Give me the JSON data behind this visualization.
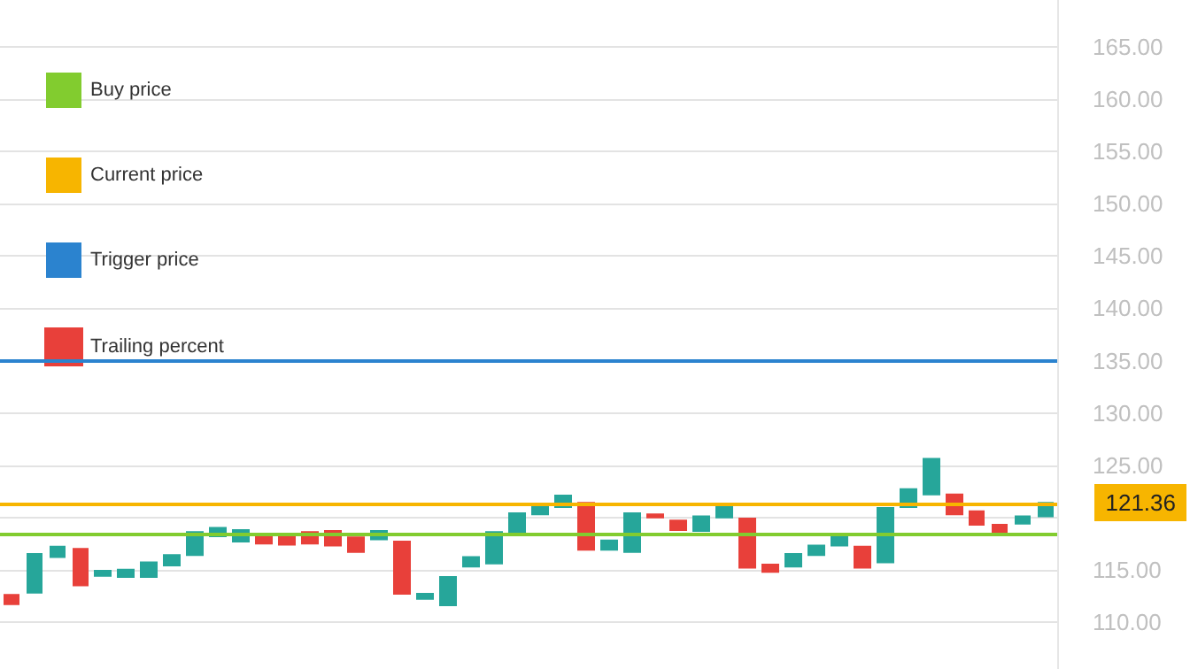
{
  "chart_data": {
    "type": "candlestick",
    "categories": [
      null,
      null,
      null,
      null,
      null,
      null,
      null,
      null,
      null,
      null,
      null,
      null,
      null,
      null,
      null,
      null,
      null,
      null,
      null,
      null,
      null,
      null,
      null,
      null,
      null,
      null,
      null,
      null,
      null,
      null,
      null,
      null,
      null,
      null,
      null,
      null,
      null,
      null,
      null,
      null,
      null,
      null,
      null,
      null,
      null,
      null
    ],
    "series": [
      {
        "name": "Trailing percent",
        "color": "#e8403a",
        "ohlc": [
          [
            112.6,
            112.6,
            111.7,
            111.7
          ],
          [
            112.8,
            116.5,
            112.8,
            116.5
          ],
          [
            116.2,
            117.2,
            116.2,
            117.2
          ],
          [
            117.0,
            117.0,
            113.5,
            113.5
          ],
          [
            114.4,
            114.9,
            114.4,
            114.9
          ],
          [
            114.3,
            115.0,
            114.3,
            115.0
          ],
          [
            114.3,
            115.7,
            114.3,
            115.7
          ],
          [
            115.4,
            116.4,
            115.4,
            116.4
          ],
          [
            116.4,
            118.6,
            116.4,
            118.6
          ],
          [
            118.2,
            119.0,
            118.2,
            119.0
          ],
          [
            117.7,
            118.8,
            117.7,
            118.8
          ],
          [
            118.4,
            118.4,
            117.5,
            117.5
          ],
          [
            118.4,
            118.4,
            117.4,
            117.4
          ],
          [
            118.6,
            118.6,
            117.5,
            117.5
          ],
          [
            118.7,
            118.7,
            117.3,
            117.3
          ],
          [
            118.1,
            118.1,
            116.7,
            116.7
          ],
          [
            117.9,
            118.7,
            117.9,
            118.7
          ],
          [
            117.7,
            117.7,
            112.7,
            112.7
          ],
          [
            112.2,
            112.7,
            112.2,
            112.7
          ],
          [
            111.6,
            114.3,
            111.6,
            114.3
          ],
          [
            115.3,
            116.2,
            115.3,
            116.2
          ],
          [
            115.6,
            118.6,
            115.6,
            118.6
          ],
          [
            118.4,
            120.4,
            118.4,
            120.4
          ],
          [
            120.3,
            121.0,
            120.3,
            121.0
          ],
          [
            121.0,
            122.1,
            121.0,
            122.1
          ],
          [
            121.4,
            121.4,
            116.9,
            116.9
          ],
          [
            116.9,
            117.8,
            116.9,
            117.8
          ],
          [
            116.7,
            120.4,
            116.7,
            120.4
          ],
          [
            120.3,
            120.3,
            120.0,
            120.0
          ],
          [
            119.7,
            119.7,
            118.8,
            118.8
          ],
          [
            118.7,
            120.1,
            118.7,
            120.1
          ],
          [
            120.0,
            121.0,
            120.0,
            121.0
          ],
          [
            119.9,
            119.9,
            115.2,
            115.2
          ],
          [
            115.5,
            115.5,
            114.8,
            114.8
          ],
          [
            115.3,
            116.5,
            115.3,
            116.5
          ],
          [
            116.4,
            117.3,
            116.4,
            117.3
          ],
          [
            117.3,
            118.4,
            117.3,
            118.4
          ],
          [
            117.2,
            117.2,
            115.2,
            115.2
          ],
          [
            115.7,
            120.9,
            115.7,
            120.9
          ],
          [
            121.0,
            122.7,
            121.0,
            122.7
          ],
          [
            122.2,
            125.6,
            122.2,
            125.6
          ],
          [
            122.2,
            122.2,
            120.3,
            120.3
          ],
          [
            120.6,
            120.6,
            119.3,
            119.3
          ],
          [
            119.3,
            119.3,
            118.6,
            118.6
          ],
          [
            119.4,
            120.1,
            119.4,
            120.1
          ],
          [
            120.1,
            121.4,
            120.1,
            121.4
          ]
        ],
        "colors": [
          "#e8403a",
          "#26a69a",
          "#26a69a",
          "#e8403a",
          "#26a69a",
          "#26a69a",
          "#26a69a",
          "#26a69a",
          "#26a69a",
          "#26a69a",
          "#26a69a",
          "#e8403a",
          "#e8403a",
          "#e8403a",
          "#e8403a",
          "#e8403a",
          "#26a69a",
          "#e8403a",
          "#26a69a",
          "#26a69a",
          "#26a69a",
          "#26a69a",
          "#26a69a",
          "#26a69a",
          "#26a69a",
          "#e8403a",
          "#26a69a",
          "#26a69a",
          "#e8403a",
          "#e8403a",
          "#26a69a",
          "#26a69a",
          "#e8403a",
          "#e8403a",
          "#26a69a",
          "#26a69a",
          "#26a69a",
          "#e8403a",
          "#26a69a",
          "#26a69a",
          "#26a69a",
          "#e8403a",
          "#e8403a",
          "#e8403a",
          "#26a69a",
          "#26a69a"
        ]
      }
    ],
    "ref_lines": [
      {
        "axis": "y",
        "value": 118.4,
        "label": "Buy price",
        "color": "#82cc2f"
      },
      {
        "axis": "y",
        "value": 121.36,
        "label": "Current price",
        "color": "#f7b500"
      },
      {
        "axis": "y",
        "value": 135,
        "label": "Trigger price",
        "color": "#2b83cf"
      }
    ],
    "annotations": [
      "121.36"
    ],
    "ylim": [
      105.5,
      169.5
    ],
    "yticks": [
      {
        "value": 110,
        "label": "110.00"
      },
      {
        "value": 115,
        "label": "115.00"
      },
      {
        "value": 120,
        "label": null
      },
      {
        "value": 125,
        "label": "125.00"
      },
      {
        "value": 130,
        "label": "130.00"
      },
      {
        "value": 135,
        "label": "135.00"
      },
      {
        "value": 140,
        "label": "140.00"
      },
      {
        "value": 145,
        "label": "145.00"
      },
      {
        "value": 150,
        "label": "150.00"
      },
      {
        "value": 155,
        "label": "155.00"
      },
      {
        "value": 160,
        "label": "160.00"
      },
      {
        "value": 165,
        "label": "165.00"
      }
    ],
    "grid": "y",
    "legend": "top left",
    "tick_labels": "y"
  }
}
